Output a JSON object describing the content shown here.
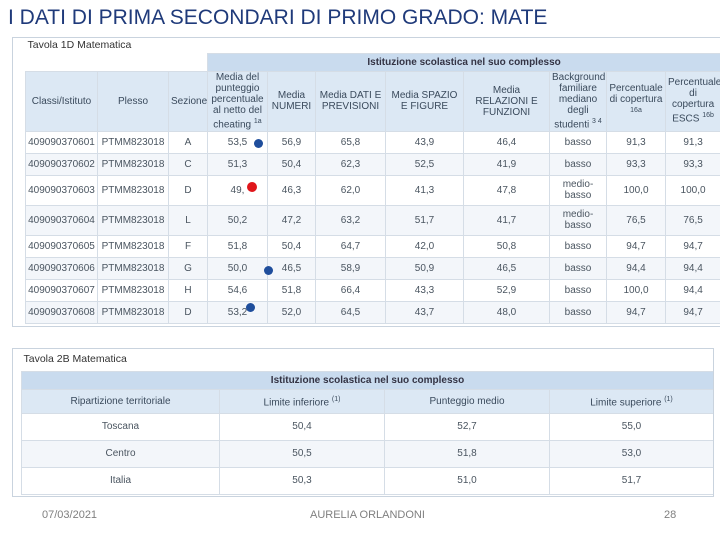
{
  "title": "I DATI DI PRIMA  SECONDARI DI PRIMO GRADO: MATE",
  "table1": {
    "caption": "Tavola 1D Matematica",
    "group_header": "Istituzione scolastica nel suo complesso",
    "headers": [
      {
        "text": "Classi/Istituto"
      },
      {
        "text": "Plesso"
      },
      {
        "text": "Sezione"
      },
      {
        "text": "Media del punteggio percentuale al netto del cheating",
        "sup": "1a"
      },
      {
        "text": "Media NUMERI"
      },
      {
        "text": "Media DATI E PREVISIONI"
      },
      {
        "text": "Media SPAZIO E FIGURE"
      },
      {
        "text": "Media RELAZIONI E FUNZIONI"
      },
      {
        "text": "Background familiare mediano degli studenti",
        "sup": "3 4"
      },
      {
        "text": "Percentuale di copertura",
        "sup": "16a"
      },
      {
        "text": "Percentuale di copertura ESCS",
        "sup": "16b"
      }
    ],
    "rows": [
      [
        "409090370601",
        "PTMM823018",
        "A",
        "53,5",
        "56,9",
        "65,8",
        "43,9",
        "46,4",
        "basso",
        "91,3",
        "91,3"
      ],
      [
        "409090370602",
        "PTMM823018",
        "C",
        "51,3",
        "50,4",
        "62,3",
        "52,5",
        "41,9",
        "basso",
        "93,3",
        "93,3"
      ],
      [
        "409090370603",
        "PTMM823018",
        "D",
        "49,",
        "46,3",
        "62,0",
        "41,3",
        "47,8",
        "medio-basso",
        "100,0",
        "100,0"
      ],
      [
        "409090370604",
        "PTMM823018",
        "L",
        "50,2",
        "47,2",
        "63,2",
        "51,7",
        "41,7",
        "medio-basso",
        "76,5",
        "76,5"
      ],
      [
        "409090370605",
        "PTMM823018",
        "F",
        "51,8",
        "50,4",
        "64,7",
        "42,0",
        "50,8",
        "basso",
        "94,7",
        "94,7"
      ],
      [
        "409090370606",
        "PTMM823018",
        "G",
        "50,0",
        "46,5",
        "58,9",
        "50,9",
        "46,5",
        "basso",
        "94,4",
        "94,4"
      ],
      [
        "409090370607",
        "PTMM823018",
        "H",
        "54,6",
        "51,8",
        "66,4",
        "43,3",
        "52,9",
        "basso",
        "100,0",
        "94,4"
      ],
      [
        "409090370608",
        "PTMM823018",
        "D",
        "53,2",
        "52,0",
        "64,5",
        "43,7",
        "48,0",
        "basso",
        "94,7",
        "94,7"
      ]
    ]
  },
  "table2": {
    "caption": "Tavola 2B Matematica",
    "group_header": "Istituzione scolastica nel suo complesso",
    "headers": [
      {
        "text": "Ripartizione territoriale"
      },
      {
        "text": "Limite inferiore",
        "sup": "(1)"
      },
      {
        "text": "Punteggio medio"
      },
      {
        "text": "Limite superiore",
        "sup": "(1)"
      }
    ],
    "rows": [
      [
        "Toscana",
        "50,4",
        "52,7",
        "55,0"
      ],
      [
        "Centro",
        "50,5",
        "51,8",
        "53,0"
      ],
      [
        "Italia",
        "50,3",
        "51,0",
        "51,7"
      ]
    ]
  },
  "footer": {
    "date": "07/03/2021",
    "author": "AURELIA ORLANDONI",
    "page": "28"
  }
}
